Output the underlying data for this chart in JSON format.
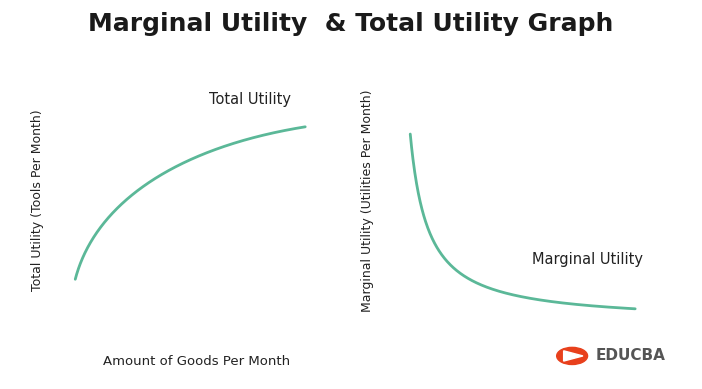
{
  "title": "Marginal Utility  & Total Utility Graph",
  "title_fontsize": 18,
  "title_fontweight": "bold",
  "background_color": "#ffffff",
  "curve_color": "#5BB898",
  "curve_linewidth": 2.0,
  "left_ylabel": "Total Utility (Tools Per Month)",
  "left_xlabel": "Amount of Goods Per Month",
  "left_label": "Total Utility",
  "right_ylabel": "Marginal Utility (Utilities Per Month)",
  "right_label": "Marginal Utility",
  "axis_color": "#444444",
  "label_fontsize": 9.5,
  "annotation_fontsize": 10.5,
  "educba_text": "EDUCBA",
  "educba_color": "#555555",
  "logo_color": "#e8401c"
}
